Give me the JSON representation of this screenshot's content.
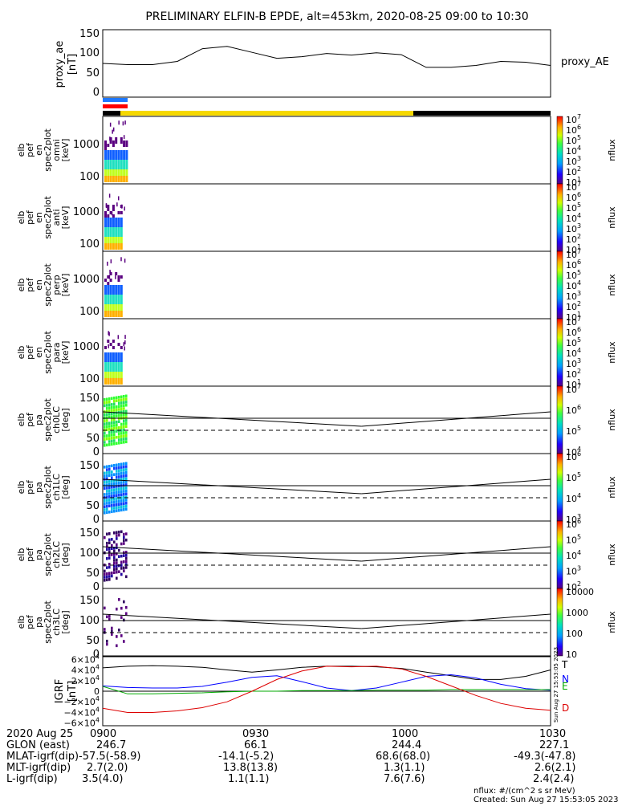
{
  "title": "PRELIMINARY ELFIN-B EPDE, alt=453km, 2020-08-25 09:00 to 10:30",
  "chart_data": [
    {
      "type": "line",
      "name": "proxy_ae",
      "ylabel": "proxy_ae [nT]",
      "ylabel_lines": [
        "proxy_ae",
        "[nT]"
      ],
      "legend": "proxy_AE",
      "yticks": [
        "150",
        "100",
        "50",
        "0"
      ],
      "ylim": [
        -10,
        160
      ],
      "x": [
        0,
        5,
        10,
        15,
        20,
        25,
        30,
        35,
        40,
        45,
        50,
        55,
        60,
        65,
        70,
        75,
        80,
        85,
        90
      ],
      "values": [
        75,
        72,
        72,
        80,
        112,
        118,
        103,
        88,
        92,
        100,
        96,
        102,
        97,
        65,
        65,
        70,
        80,
        78,
        70
      ]
    },
    {
      "type": "heatmap",
      "name": "elb_pef_en_spec2plot_omni",
      "ylabel_lines": [
        "elb",
        "pef",
        "en",
        "spec2plot",
        "omni",
        "[keV]"
      ],
      "yticks": [
        "1000",
        "100"
      ],
      "colorbar": {
        "label": "nflux",
        "ticks": [
          "10^7",
          "10^6",
          "10^5",
          "10^4",
          "10^3",
          "10^2",
          "10^1"
        ]
      }
    },
    {
      "type": "heatmap",
      "name": "elb_pef_en_spec2plot_anti",
      "ylabel_lines": [
        "elb",
        "pef",
        "en",
        "spec2plot",
        "anti",
        "[keV]"
      ],
      "yticks": [
        "1000",
        "100"
      ],
      "colorbar": {
        "label": "nflux",
        "ticks": [
          "10^7",
          "10^6",
          "10^5",
          "10^4",
          "10^3",
          "10^2",
          "10^1"
        ]
      }
    },
    {
      "type": "heatmap",
      "name": "elb_pef_en_spec2plot_perp",
      "ylabel_lines": [
        "elb",
        "pef",
        "en",
        "spec2plot",
        "perp",
        "[keV]"
      ],
      "yticks": [
        "1000",
        "100"
      ],
      "colorbar": {
        "label": "nflux",
        "ticks": [
          "10^7",
          "10^6",
          "10^5",
          "10^4",
          "10^3",
          "10^2",
          "10^1"
        ]
      }
    },
    {
      "type": "heatmap",
      "name": "elb_pef_en_spec2plot_para",
      "ylabel_lines": [
        "elb",
        "pef",
        "en",
        "spec2plot",
        "para",
        "[keV]"
      ],
      "yticks": [
        "1000",
        "100"
      ],
      "colorbar": {
        "label": "nflux",
        "ticks": [
          "10^7",
          "10^6",
          "10^5",
          "10^4",
          "10^3",
          "10^2",
          "10^1"
        ]
      }
    },
    {
      "type": "heatmap",
      "name": "elb_pef_pa_spec2plot_ch0LC",
      "ylabel_lines": [
        "elb",
        "pef",
        "pa",
        "spec2plot",
        "ch0LC",
        "[deg]"
      ],
      "yticks": [
        "150",
        "100",
        "50",
        "0"
      ],
      "colorbar": {
        "label": "nflux",
        "ticks": [
          "10^7",
          "10^6",
          "10^5",
          "10^4"
        ]
      }
    },
    {
      "type": "heatmap",
      "name": "elb_pef_pa_spec2plot_ch1LC",
      "ylabel_lines": [
        "elb",
        "pef",
        "pa",
        "spec2plot",
        "ch1LC",
        "[deg]"
      ],
      "yticks": [
        "150",
        "100",
        "50",
        "0"
      ],
      "colorbar": {
        "label": "nflux",
        "ticks": [
          "10^6",
          "10^5",
          "10^4",
          "10^3"
        ]
      }
    },
    {
      "type": "heatmap",
      "name": "elb_pef_pa_spec2plot_ch2LC",
      "ylabel_lines": [
        "elb",
        "pef",
        "pa",
        "spec2plot",
        "ch2LC",
        "[deg]"
      ],
      "yticks": [
        "150",
        "100",
        "50",
        "0"
      ],
      "colorbar": {
        "label": "nflux",
        "ticks": [
          "10^6",
          "10^5",
          "10^4",
          "10^3",
          "10^2"
        ]
      }
    },
    {
      "type": "heatmap",
      "name": "elb_pef_pa_spec2plot_ch3LC",
      "ylabel_lines": [
        "elb",
        "pef",
        "pa",
        "spec2plot",
        "ch3LC",
        "[deg]"
      ],
      "yticks": [
        "150",
        "100",
        "50",
        "0"
      ],
      "colorbar": {
        "label": "nflux",
        "ticks": [
          "10000",
          "1000",
          "100",
          "10"
        ]
      }
    },
    {
      "type": "line",
      "name": "IGRF",
      "ylabel_lines": [
        "IGRF",
        "[nT]"
      ],
      "yticks": [
        "6×10^4",
        "4×10^4",
        "2×10^4",
        "0",
        "−2×10^4",
        "−4×10^4",
        "−6×10^4"
      ],
      "ylim": [
        -65000,
        65000
      ],
      "x": [
        0,
        5,
        10,
        15,
        20,
        25,
        30,
        35,
        40,
        45,
        50,
        55,
        60,
        65,
        70,
        75,
        80,
        85,
        90
      ],
      "series": [
        {
          "name": "T",
          "values": [
            44000,
            47000,
            48000,
            47000,
            45000,
            40000,
            36000,
            40000,
            45000,
            47000,
            47000,
            46000,
            43000,
            36000,
            29000,
            22000,
            22000,
            28000,
            40000
          ]
        },
        {
          "name": "N",
          "values": [
            10000,
            7000,
            6000,
            6000,
            9000,
            17000,
            26000,
            29000,
            18000,
            6000,
            1000,
            6000,
            17000,
            28000,
            31000,
            25000,
            13000,
            5000,
            2000
          ]
        },
        {
          "name": "E",
          "values": [
            9000,
            -5000,
            -5000,
            -4000,
            -3000,
            -1000,
            0,
            0,
            1000,
            1000,
            1000,
            2000,
            2000,
            2000,
            3000,
            3000,
            3000,
            3000,
            3000
          ]
        },
        {
          "name": "D",
          "values": [
            -32000,
            -40000,
            -40000,
            -37000,
            -31000,
            -20000,
            0,
            22000,
            38000,
            47000,
            46000,
            47000,
            42000,
            28000,
            10000,
            -8000,
            -23000,
            -32000,
            -36000
          ]
        }
      ]
    }
  ],
  "stamp": "Sun Aug 27 15:53:05 2023",
  "xticks": [
    "0900",
    "0930",
    "1000",
    "1030"
  ],
  "footer": {
    "date": "2020 Aug 25",
    "rows": [
      {
        "label": "GLON (east)",
        "values": [
          "246.7",
          "66.1",
          "244.4",
          "227.1"
        ]
      },
      {
        "label": "MLAT-igrf(dip)",
        "values": [
          "-57.5(-58.9)",
          "-14.1(-5.2)",
          "68.6(68.0)",
          "-49.3(-47.8)"
        ]
      },
      {
        "label": "MLT-igrf(dip)",
        "values": [
          "2.7(2.0)",
          "13.8(13.8)",
          "1.3(1.1)",
          "2.6(2.1)"
        ]
      },
      {
        "label": "L-igrf(dip)",
        "values": [
          "3.5(4.0)",
          "1.1(1.1)",
          "7.6(7.6)",
          "2.4(2.4)"
        ]
      }
    ],
    "units_note": "nflux: #/(cm^2 s sr MeV)",
    "created": "Created: Sun Aug 27 15:53:05 2023"
  },
  "colors": {
    "blue_bar": "#1e78ff",
    "red_bar": "#ff0000",
    "yellow_bar": "#f5d800",
    "black_bar": "#000000",
    "T": "#000000",
    "N": "#0000ff",
    "E": "#00aa00",
    "D": "#dd0000"
  }
}
